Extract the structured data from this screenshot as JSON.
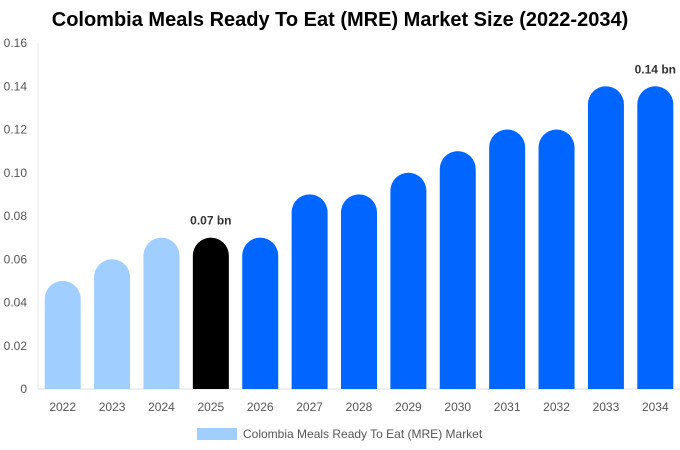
{
  "chart_data": {
    "type": "bar",
    "title": "Colombia Meals Ready To Eat (MRE) Market Size (2022-2034)",
    "categories": [
      "2022",
      "2023",
      "2024",
      "2025",
      "2026",
      "2027",
      "2028",
      "2029",
      "2030",
      "2031",
      "2032",
      "2033",
      "2034"
    ],
    "series": [
      {
        "name": "Colombia Meals Ready To Eat (MRE) Market",
        "values": [
          0.05,
          0.06,
          0.07,
          0.07,
          0.07,
          0.09,
          0.09,
          0.1,
          0.11,
          0.12,
          0.12,
          0.14,
          0.14
        ]
      }
    ],
    "yticks": [
      "0",
      "0.02",
      "0.04",
      "0.06",
      "0.08",
      "0.10",
      "0.12",
      "0.14",
      "0.16"
    ],
    "ylim": [
      0,
      0.16
    ],
    "xlabel": "",
    "ylabel": "",
    "grid": false,
    "legend_placement": "bottom",
    "annotations": [
      {
        "index": 3,
        "text": "0.07 bn"
      },
      {
        "index": 12,
        "text": "0.14 bn"
      }
    ],
    "colors": {
      "historical": "#a0cfff",
      "current": "#000000",
      "forecast": "#0066ff"
    }
  }
}
